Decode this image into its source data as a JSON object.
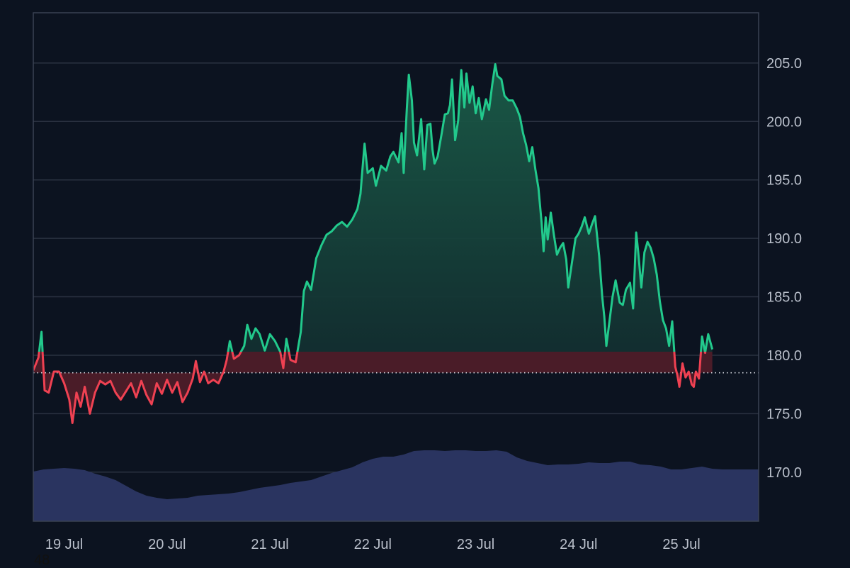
{
  "chart_data": {
    "type": "area",
    "baseline": 178.5,
    "ylim": [
      165.8,
      209.3
    ],
    "y_ticks": [
      170.0,
      175.0,
      180.0,
      185.0,
      190.0,
      195.0,
      200.0,
      205.0
    ],
    "x_range": [
      0,
      7.05
    ],
    "x_ticks": [
      {
        "x": 0.3,
        "label": "19 Jul"
      },
      {
        "x": 1.3,
        "label": "20 Jul"
      },
      {
        "x": 2.3,
        "label": "21 Jul"
      },
      {
        "x": 3.3,
        "label": "22 Jul"
      },
      {
        "x": 4.3,
        "label": "23 Jul"
      },
      {
        "x": 5.3,
        "label": "24 Jul"
      },
      {
        "x": 6.3,
        "label": "25 Jul"
      }
    ],
    "series": [
      {
        "role": "price",
        "points": [
          [
            0.0,
            178.7
          ],
          [
            0.05,
            179.8
          ],
          [
            0.08,
            182.0
          ],
          [
            0.11,
            177.0
          ],
          [
            0.15,
            176.8
          ],
          [
            0.2,
            178.6
          ],
          [
            0.25,
            178.6
          ],
          [
            0.3,
            177.6
          ],
          [
            0.35,
            176.2
          ],
          [
            0.38,
            174.2
          ],
          [
            0.42,
            176.8
          ],
          [
            0.46,
            175.6
          ],
          [
            0.5,
            177.3
          ],
          [
            0.55,
            175.0
          ],
          [
            0.6,
            176.8
          ],
          [
            0.65,
            177.8
          ],
          [
            0.7,
            177.5
          ],
          [
            0.75,
            177.8
          ],
          [
            0.8,
            176.8
          ],
          [
            0.85,
            176.2
          ],
          [
            0.9,
            176.9
          ],
          [
            0.95,
            177.6
          ],
          [
            1.0,
            176.4
          ],
          [
            1.05,
            177.8
          ],
          [
            1.1,
            176.6
          ],
          [
            1.15,
            175.8
          ],
          [
            1.2,
            177.6
          ],
          [
            1.25,
            176.7
          ],
          [
            1.3,
            177.9
          ],
          [
            1.35,
            176.8
          ],
          [
            1.4,
            177.7
          ],
          [
            1.45,
            176.0
          ],
          [
            1.5,
            176.8
          ],
          [
            1.55,
            178.0
          ],
          [
            1.58,
            179.5
          ],
          [
            1.62,
            177.7
          ],
          [
            1.66,
            178.6
          ],
          [
            1.7,
            177.6
          ],
          [
            1.75,
            177.9
          ],
          [
            1.8,
            177.6
          ],
          [
            1.85,
            178.6
          ],
          [
            1.88,
            179.6
          ],
          [
            1.91,
            181.2
          ],
          [
            1.95,
            179.7
          ],
          [
            2.0,
            180.0
          ],
          [
            2.05,
            180.8
          ],
          [
            2.08,
            182.6
          ],
          [
            2.12,
            181.4
          ],
          [
            2.16,
            182.3
          ],
          [
            2.2,
            181.8
          ],
          [
            2.25,
            180.4
          ],
          [
            2.3,
            181.8
          ],
          [
            2.35,
            181.2
          ],
          [
            2.4,
            180.3
          ],
          [
            2.43,
            178.9
          ],
          [
            2.46,
            181.4
          ],
          [
            2.5,
            179.6
          ],
          [
            2.55,
            179.4
          ],
          [
            2.6,
            182.0
          ],
          [
            2.63,
            185.5
          ],
          [
            2.66,
            186.3
          ],
          [
            2.7,
            185.6
          ],
          [
            2.75,
            188.3
          ],
          [
            2.8,
            189.4
          ],
          [
            2.85,
            190.3
          ],
          [
            2.9,
            190.6
          ],
          [
            2.95,
            191.1
          ],
          [
            3.0,
            191.4
          ],
          [
            3.05,
            191.0
          ],
          [
            3.1,
            191.6
          ],
          [
            3.15,
            192.5
          ],
          [
            3.18,
            193.8
          ],
          [
            3.2,
            196.0
          ],
          [
            3.22,
            198.1
          ],
          [
            3.25,
            195.6
          ],
          [
            3.3,
            196.0
          ],
          [
            3.33,
            194.5
          ],
          [
            3.38,
            196.2
          ],
          [
            3.43,
            195.8
          ],
          [
            3.47,
            197.0
          ],
          [
            3.5,
            197.4
          ],
          [
            3.55,
            196.5
          ],
          [
            3.58,
            199.0
          ],
          [
            3.6,
            195.6
          ],
          [
            3.63,
            201.0
          ],
          [
            3.65,
            204.0
          ],
          [
            3.68,
            201.8
          ],
          [
            3.7,
            198.2
          ],
          [
            3.73,
            197.1
          ],
          [
            3.77,
            200.2
          ],
          [
            3.8,
            195.9
          ],
          [
            3.83,
            199.7
          ],
          [
            3.86,
            199.8
          ],
          [
            3.88,
            197.6
          ],
          [
            3.9,
            196.4
          ],
          [
            3.93,
            197.0
          ],
          [
            3.97,
            199.0
          ],
          [
            4.0,
            200.6
          ],
          [
            4.03,
            200.7
          ],
          [
            4.05,
            201.4
          ],
          [
            4.07,
            203.6
          ],
          [
            4.1,
            198.4
          ],
          [
            4.13,
            200.1
          ],
          [
            4.16,
            204.4
          ],
          [
            4.19,
            201.2
          ],
          [
            4.21,
            204.1
          ],
          [
            4.24,
            201.6
          ],
          [
            4.27,
            203.0
          ],
          [
            4.3,
            200.7
          ],
          [
            4.33,
            202.0
          ],
          [
            4.36,
            200.2
          ],
          [
            4.4,
            201.9
          ],
          [
            4.43,
            201.0
          ],
          [
            4.46,
            203.1
          ],
          [
            4.49,
            204.9
          ],
          [
            4.51,
            203.9
          ],
          [
            4.55,
            203.6
          ],
          [
            4.58,
            202.2
          ],
          [
            4.62,
            201.8
          ],
          [
            4.66,
            201.8
          ],
          [
            4.7,
            201.1
          ],
          [
            4.73,
            200.4
          ],
          [
            4.76,
            199.0
          ],
          [
            4.79,
            198.0
          ],
          [
            4.82,
            196.6
          ],
          [
            4.85,
            197.8
          ],
          [
            4.88,
            195.9
          ],
          [
            4.91,
            194.3
          ],
          [
            4.94,
            191.4
          ],
          [
            4.96,
            188.9
          ],
          [
            4.98,
            191.8
          ],
          [
            5.0,
            189.9
          ],
          [
            5.03,
            192.2
          ],
          [
            5.06,
            190.3
          ],
          [
            5.09,
            188.6
          ],
          [
            5.12,
            189.2
          ],
          [
            5.15,
            189.6
          ],
          [
            5.18,
            188.2
          ],
          [
            5.2,
            185.8
          ],
          [
            5.23,
            187.6
          ],
          [
            5.27,
            190.0
          ],
          [
            5.3,
            190.4
          ],
          [
            5.33,
            191.0
          ],
          [
            5.36,
            191.8
          ],
          [
            5.4,
            190.4
          ],
          [
            5.43,
            191.2
          ],
          [
            5.46,
            191.9
          ],
          [
            5.5,
            188.5
          ],
          [
            5.53,
            185.0
          ],
          [
            5.55,
            183.3
          ],
          [
            5.57,
            180.8
          ],
          [
            5.6,
            182.9
          ],
          [
            5.63,
            185.0
          ],
          [
            5.66,
            186.4
          ],
          [
            5.7,
            184.5
          ],
          [
            5.73,
            184.3
          ],
          [
            5.76,
            185.6
          ],
          [
            5.8,
            186.2
          ],
          [
            5.83,
            184.0
          ],
          [
            5.86,
            190.5
          ],
          [
            5.88,
            188.8
          ],
          [
            5.91,
            185.8
          ],
          [
            5.94,
            188.8
          ],
          [
            5.97,
            189.7
          ],
          [
            6.0,
            189.2
          ],
          [
            6.03,
            188.3
          ],
          [
            6.06,
            186.9
          ],
          [
            6.09,
            184.6
          ],
          [
            6.12,
            183.0
          ],
          [
            6.15,
            182.3
          ],
          [
            6.18,
            180.8
          ],
          [
            6.21,
            182.9
          ],
          [
            6.24,
            179.0
          ],
          [
            6.26,
            178.3
          ],
          [
            6.28,
            177.3
          ],
          [
            6.31,
            179.3
          ],
          [
            6.34,
            178.1
          ],
          [
            6.37,
            178.6
          ],
          [
            6.4,
            177.5
          ],
          [
            6.42,
            177.3
          ],
          [
            6.44,
            178.6
          ],
          [
            6.47,
            178.0
          ],
          [
            6.5,
            181.6
          ],
          [
            6.53,
            180.2
          ],
          [
            6.56,
            181.8
          ],
          [
            6.6,
            180.5
          ]
        ]
      },
      {
        "role": "volume",
        "points": [
          [
            0.0,
            0.7
          ],
          [
            0.1,
            0.73
          ],
          [
            0.2,
            0.74
          ],
          [
            0.3,
            0.75
          ],
          [
            0.4,
            0.74
          ],
          [
            0.5,
            0.72
          ],
          [
            0.6,
            0.67
          ],
          [
            0.7,
            0.63
          ],
          [
            0.8,
            0.58
          ],
          [
            0.9,
            0.5
          ],
          [
            1.0,
            0.42
          ],
          [
            1.1,
            0.36
          ],
          [
            1.2,
            0.33
          ],
          [
            1.3,
            0.31
          ],
          [
            1.4,
            0.32
          ],
          [
            1.5,
            0.33
          ],
          [
            1.6,
            0.36
          ],
          [
            1.7,
            0.37
          ],
          [
            1.8,
            0.38
          ],
          [
            1.9,
            0.39
          ],
          [
            2.0,
            0.41
          ],
          [
            2.1,
            0.44
          ],
          [
            2.2,
            0.47
          ],
          [
            2.3,
            0.49
          ],
          [
            2.4,
            0.51
          ],
          [
            2.5,
            0.54
          ],
          [
            2.6,
            0.56
          ],
          [
            2.7,
            0.58
          ],
          [
            2.8,
            0.63
          ],
          [
            2.9,
            0.68
          ],
          [
            3.0,
            0.72
          ],
          [
            3.1,
            0.76
          ],
          [
            3.2,
            0.83
          ],
          [
            3.3,
            0.88
          ],
          [
            3.4,
            0.91
          ],
          [
            3.5,
            0.91
          ],
          [
            3.6,
            0.94
          ],
          [
            3.7,
            0.99
          ],
          [
            3.8,
            1.0
          ],
          [
            3.9,
            1.0
          ],
          [
            4.0,
            0.99
          ],
          [
            4.1,
            1.0
          ],
          [
            4.2,
            1.0
          ],
          [
            4.3,
            0.99
          ],
          [
            4.4,
            0.99
          ],
          [
            4.5,
            1.0
          ],
          [
            4.6,
            0.98
          ],
          [
            4.7,
            0.9
          ],
          [
            4.8,
            0.85
          ],
          [
            4.9,
            0.82
          ],
          [
            5.0,
            0.79
          ],
          [
            5.1,
            0.8
          ],
          [
            5.2,
            0.8
          ],
          [
            5.3,
            0.81
          ],
          [
            5.4,
            0.83
          ],
          [
            5.5,
            0.82
          ],
          [
            5.6,
            0.82
          ],
          [
            5.7,
            0.84
          ],
          [
            5.8,
            0.84
          ],
          [
            5.9,
            0.8
          ],
          [
            6.0,
            0.79
          ],
          [
            6.1,
            0.77
          ],
          [
            6.2,
            0.73
          ],
          [
            6.3,
            0.73
          ],
          [
            6.4,
            0.75
          ],
          [
            6.5,
            0.77
          ],
          [
            6.6,
            0.74
          ],
          [
            6.7,
            0.73
          ],
          [
            6.8,
            0.73
          ]
        ]
      }
    ],
    "colors": {
      "up_line": "#22c98c",
      "down_line": "#ef4152",
      "up_fill_top": "#1a5c48",
      "up_fill_bottom": "#11252b",
      "down_fill": "#4a1c28",
      "volume": "#2a3460",
      "grid": "#2a3241",
      "frame": "#3a4252",
      "background": "#0c1320",
      "baseline_dots": "#d8dce3"
    }
  },
  "corner_label": "48"
}
